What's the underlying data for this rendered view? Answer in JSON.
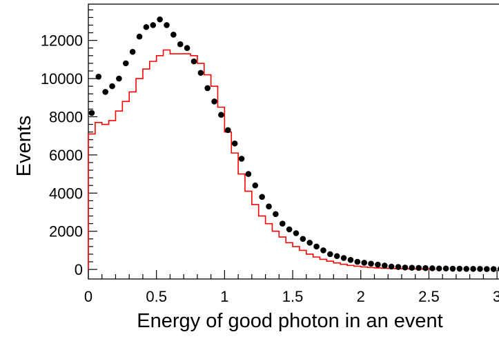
{
  "chart_data": {
    "type": "histogram",
    "title": "",
    "xlabel": "Energy of good photon in an event",
    "ylabel": "Events",
    "xlim": [
      0,
      3.05
    ],
    "ylim": [
      -500,
      13900
    ],
    "x_ticks": [
      0,
      0.5,
      1,
      1.5,
      2,
      2.5,
      3
    ],
    "x_tick_labels": [
      "0",
      "0.5",
      "1",
      "1.5",
      "2",
      "2.5",
      "3"
    ],
    "y_ticks": [
      0,
      2000,
      4000,
      6000,
      8000,
      10000,
      12000
    ],
    "y_tick_labels": [
      "0",
      "2000",
      "4000",
      "6000",
      "8000",
      "10000",
      "12000"
    ],
    "bin_width": 0.05,
    "bin_start": 0,
    "series": [
      {
        "kind": "points",
        "color": "#000000",
        "x": [
          0.025,
          0.075,
          0.125,
          0.175,
          0.225,
          0.275,
          0.325,
          0.375,
          0.425,
          0.475,
          0.525,
          0.575,
          0.625,
          0.675,
          0.725,
          0.775,
          0.825,
          0.875,
          0.925,
          0.975,
          1.025,
          1.075,
          1.125,
          1.175,
          1.225,
          1.275,
          1.325,
          1.375,
          1.425,
          1.475,
          1.525,
          1.575,
          1.625,
          1.675,
          1.725,
          1.775,
          1.825,
          1.875,
          1.925,
          1.975,
          2.025,
          2.075,
          2.125,
          2.175,
          2.225,
          2.275,
          2.325,
          2.375,
          2.425,
          2.475,
          2.525,
          2.575,
          2.625,
          2.675,
          2.725,
          2.775,
          2.825,
          2.875,
          2.925,
          2.975,
          3.025
        ],
        "y": [
          8200,
          10100,
          9300,
          9600,
          10000,
          10800,
          11400,
          12200,
          12700,
          12800,
          13100,
          12800,
          12300,
          11800,
          11600,
          10900,
          10300,
          9500,
          8800,
          8100,
          7300,
          6600,
          5800,
          5000,
          4400,
          3800,
          3300,
          2900,
          2400,
          2100,
          1900,
          1600,
          1400,
          1200,
          1000,
          800,
          700,
          600,
          500,
          400,
          350,
          300,
          250,
          200,
          150,
          130,
          100,
          90,
          80,
          70,
          60,
          50,
          50,
          40,
          40,
          30,
          30,
          30,
          20,
          20,
          20
        ]
      },
      {
        "kind": "step",
        "color": "#ff0000",
        "values": [
          7100,
          7700,
          7600,
          7800,
          8300,
          8800,
          9300,
          10000,
          10500,
          10900,
          11200,
          11500,
          11300,
          11300,
          11300,
          11200,
          10800,
          10200,
          9600,
          8500,
          7200,
          6100,
          5000,
          4100,
          3400,
          2800,
          2400,
          2000,
          1700,
          1400,
          1200,
          1000,
          800,
          650,
          530,
          430,
          340,
          270,
          210,
          170,
          130,
          100,
          80,
          60,
          50,
          40,
          30,
          25,
          20,
          15,
          10
        ]
      }
    ]
  }
}
